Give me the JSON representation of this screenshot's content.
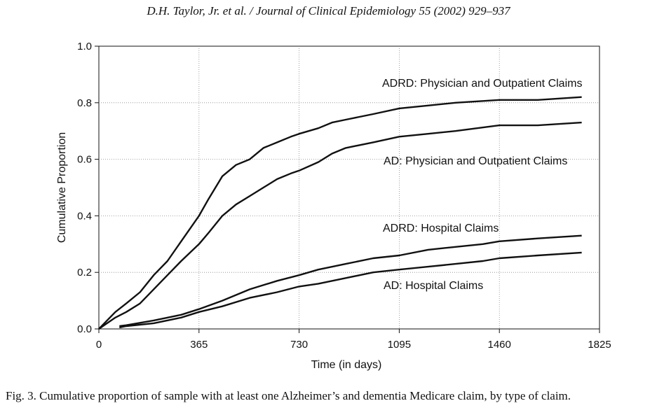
{
  "header": "D.H. Taylor, Jr. et al. / Journal of Clinical Epidemiology 55 (2002) 929–937",
  "caption": "Fig. 3. Cumulative proportion of sample with at least one Alzheimer’s and dementia Medicare claim, by type of claim.",
  "chart_data": {
    "type": "line",
    "xlabel": "Time (in days)",
    "ylabel": "Cumulative Proportion",
    "xlim": [
      0,
      1825
    ],
    "ylim": [
      0,
      1.0
    ],
    "xticks": [
      0,
      365,
      730,
      1095,
      1460,
      1825
    ],
    "yticks": [
      0.0,
      0.2,
      0.4,
      0.6,
      0.8,
      1.0
    ],
    "ytick_labels": [
      "0.0",
      "0.2",
      "0.4",
      "0.6",
      "0.8",
      "1.0"
    ],
    "grid": true,
    "series": [
      {
        "name": "ADRD: Physician and Outpatient Claims",
        "x": [
          0,
          30,
          60,
          100,
          150,
          200,
          250,
          300,
          365,
          400,
          450,
          500,
          550,
          600,
          650,
          700,
          730,
          800,
          850,
          900,
          1000,
          1095,
          1200,
          1300,
          1460,
          1600,
          1760
        ],
        "y": [
          0.0,
          0.03,
          0.06,
          0.09,
          0.13,
          0.19,
          0.24,
          0.31,
          0.4,
          0.46,
          0.54,
          0.58,
          0.6,
          0.64,
          0.66,
          0.68,
          0.69,
          0.71,
          0.73,
          0.74,
          0.76,
          0.78,
          0.79,
          0.8,
          0.81,
          0.81,
          0.82
        ]
      },
      {
        "name": "AD: Physician and Outpatient Claims",
        "x": [
          0,
          30,
          60,
          100,
          150,
          200,
          250,
          300,
          365,
          400,
          450,
          500,
          550,
          600,
          650,
          700,
          730,
          800,
          850,
          900,
          1000,
          1095,
          1200,
          1300,
          1460,
          1600,
          1760
        ],
        "y": [
          0.0,
          0.02,
          0.04,
          0.06,
          0.09,
          0.14,
          0.19,
          0.24,
          0.3,
          0.34,
          0.4,
          0.44,
          0.47,
          0.5,
          0.53,
          0.55,
          0.56,
          0.59,
          0.62,
          0.64,
          0.66,
          0.68,
          0.69,
          0.7,
          0.72,
          0.72,
          0.73
        ]
      },
      {
        "name": "ADRD: Hospital Claims",
        "x": [
          75,
          100,
          200,
          300,
          365,
          450,
          550,
          650,
          730,
          800,
          900,
          1000,
          1095,
          1200,
          1300,
          1400,
          1460,
          1600,
          1760
        ],
        "y": [
          0.01,
          0.013,
          0.03,
          0.05,
          0.07,
          0.1,
          0.14,
          0.17,
          0.19,
          0.21,
          0.23,
          0.25,
          0.26,
          0.28,
          0.29,
          0.3,
          0.31,
          0.32,
          0.33
        ]
      },
      {
        "name": "AD: Hospital Claims",
        "x": [
          75,
          100,
          200,
          300,
          365,
          450,
          550,
          650,
          730,
          800,
          900,
          1000,
          1095,
          1200,
          1300,
          1400,
          1460,
          1600,
          1760
        ],
        "y": [
          0.005,
          0.01,
          0.02,
          0.04,
          0.06,
          0.08,
          0.11,
          0.13,
          0.15,
          0.16,
          0.18,
          0.2,
          0.21,
          0.22,
          0.23,
          0.24,
          0.25,
          0.26,
          0.27
        ]
      }
    ]
  }
}
